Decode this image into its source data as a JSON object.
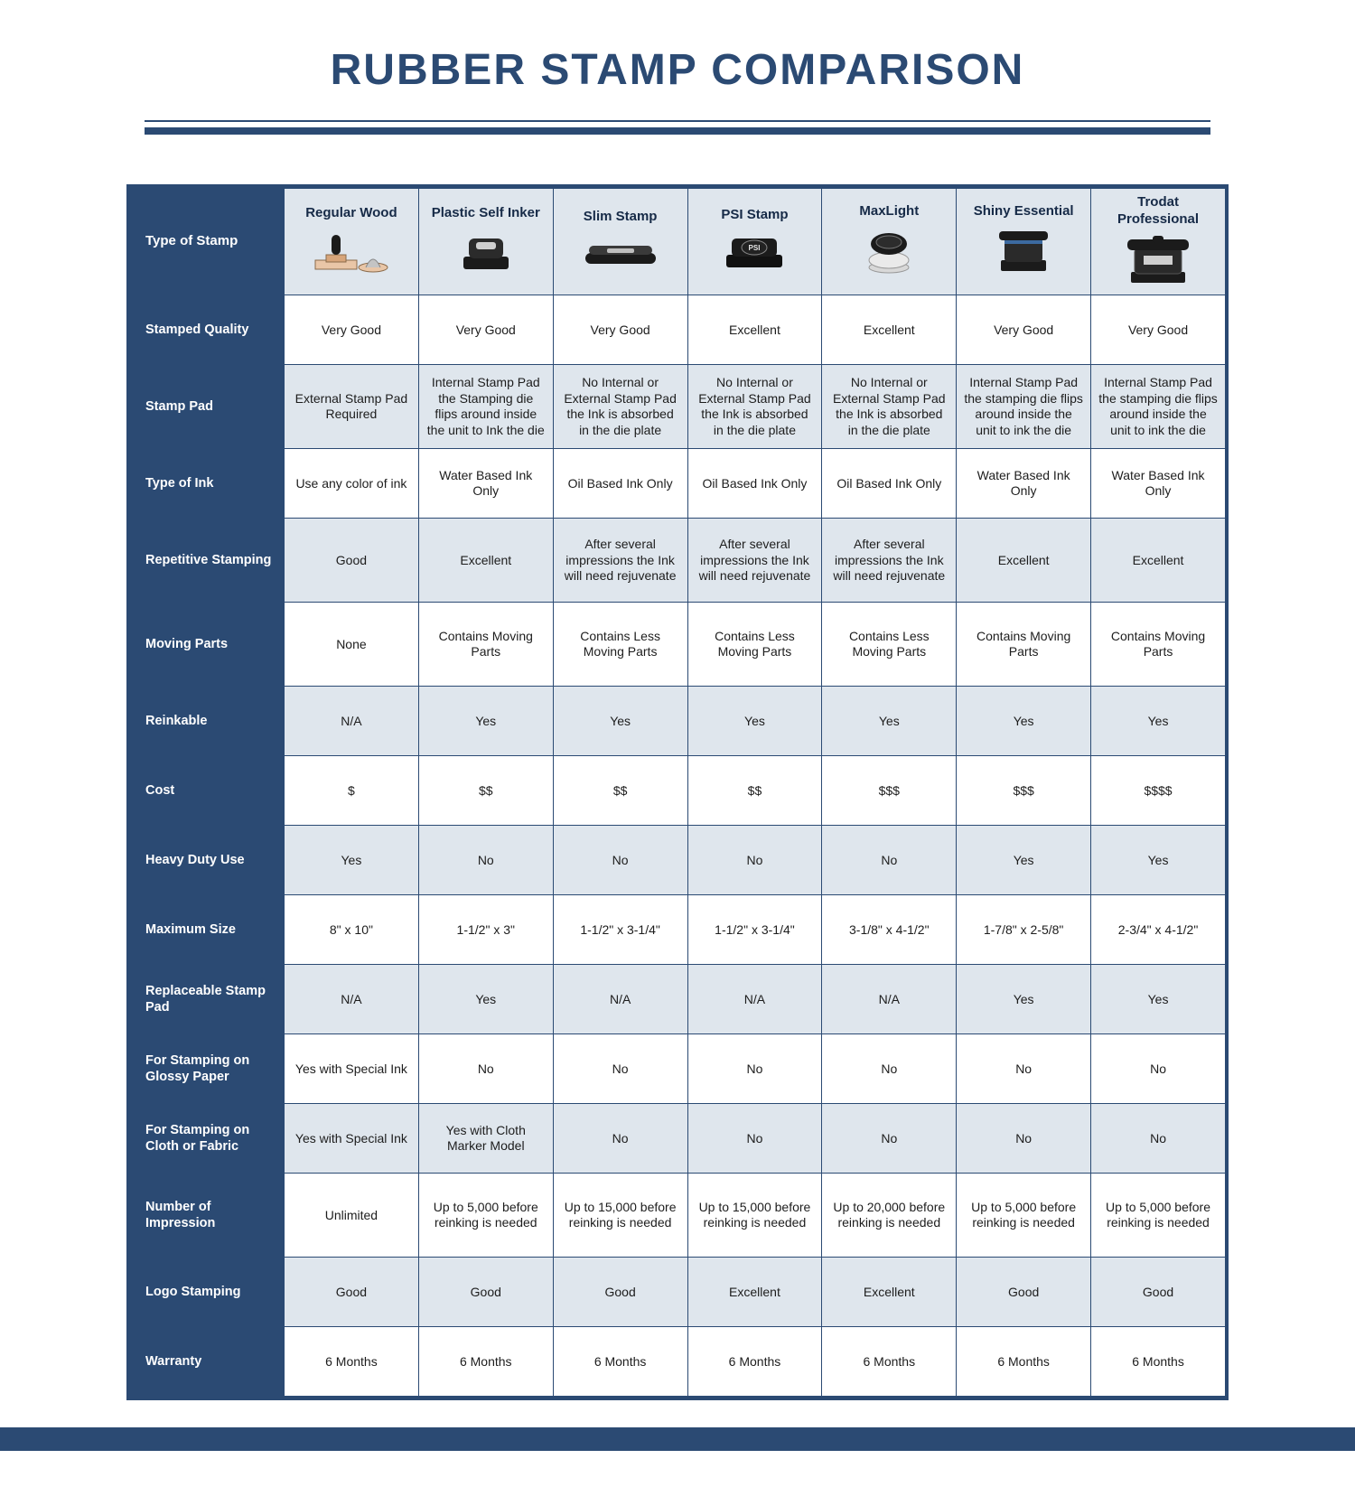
{
  "title": "RUBBER STAMP COMPARISON",
  "colors": {
    "brand": "#2b4a73",
    "header_bg": "#dfe6ed",
    "row_alt_bg": "#dfe6ed",
    "text": "#1d1d1d",
    "white": "#ffffff"
  },
  "corner_label": "Type of Stamp",
  "columns": [
    "Regular Wood",
    "Plastic Self Inker",
    "Slim Stamp",
    "PSI Stamp",
    "MaxLight",
    "Shiny Essential",
    "Trodat Professional"
  ],
  "rows": [
    {
      "label": "Stamped Quality",
      "alt": false,
      "tall": false,
      "cells": [
        "Very Good",
        "Very Good",
        "Very Good",
        "Excellent",
        "Excellent",
        "Very Good",
        "Very Good"
      ]
    },
    {
      "label": "Stamp Pad",
      "alt": true,
      "tall": true,
      "cells": [
        "External Stamp Pad Required",
        "Internal Stamp Pad the Stamping die flips around inside the unit to Ink the die",
        "No Internal or External Stamp Pad the Ink is absorbed in the die plate",
        "No Internal or External Stamp Pad the Ink is absorbed in the die plate",
        "No Internal or External Stamp Pad the Ink is absorbed in the die plate",
        "Internal Stamp Pad the stamping die flips around inside the unit to ink the die",
        "Internal Stamp Pad the stamping die flips around inside the unit to ink the die"
      ]
    },
    {
      "label": "Type of Ink",
      "alt": false,
      "tall": false,
      "cells": [
        "Use any color of ink",
        "Water Based Ink Only",
        "Oil Based Ink Only",
        "Oil Based Ink Only",
        "Oil Based Ink Only",
        "Water Based Ink Only",
        "Water Based Ink Only"
      ]
    },
    {
      "label": "Repetitive Stamping",
      "alt": true,
      "tall": true,
      "cells": [
        "Good",
        "Excellent",
        "After several impressions the Ink will need rejuvenate",
        "After several impressions the Ink will need rejuvenate",
        "After several impressions the Ink will need rejuvenate",
        "Excellent",
        "Excellent"
      ]
    },
    {
      "label": "Moving Parts",
      "alt": false,
      "tall": true,
      "cells": [
        "None",
        "Contains Moving Parts",
        "Contains Less Moving Parts",
        "Contains Less Moving Parts",
        "Contains Less Moving Parts",
        "Contains Moving Parts",
        "Contains Moving Parts"
      ]
    },
    {
      "label": "Reinkable",
      "alt": true,
      "tall": false,
      "cells": [
        "N/A",
        "Yes",
        "Yes",
        "Yes",
        "Yes",
        "Yes",
        "Yes"
      ]
    },
    {
      "label": "Cost",
      "alt": false,
      "tall": false,
      "cells": [
        "$",
        "$$",
        "$$",
        "$$",
        "$$$",
        "$$$",
        "$$$$"
      ]
    },
    {
      "label": "Heavy Duty Use",
      "alt": true,
      "tall": false,
      "cells": [
        "Yes",
        "No",
        "No",
        "No",
        "No",
        "Yes",
        "Yes"
      ]
    },
    {
      "label": "Maximum Size",
      "alt": false,
      "tall": false,
      "cells": [
        "8\" x 10\"",
        "1-1/2\" x 3\"",
        "1-1/2\" x 3-1/4\"",
        "1-1/2\" x 3-1/4\"",
        "3-1/8\" x 4-1/2\"",
        "1-7/8\" x 2-5/8\"",
        "2-3/4\" x 4-1/2\""
      ]
    },
    {
      "label": "Replaceable Stamp Pad",
      "alt": true,
      "tall": false,
      "cells": [
        "N/A",
        "Yes",
        "N/A",
        "N/A",
        "N/A",
        "Yes",
        "Yes"
      ]
    },
    {
      "label": "For Stamping on Glossy Paper",
      "alt": false,
      "tall": false,
      "cells": [
        "Yes with Special Ink",
        "No",
        "No",
        "No",
        "No",
        "No",
        "No"
      ]
    },
    {
      "label": "For Stamping on Cloth or Fabric",
      "alt": true,
      "tall": false,
      "cells": [
        "Yes with Special Ink",
        "Yes with Cloth Marker Model",
        "No",
        "No",
        "No",
        "No",
        "No"
      ]
    },
    {
      "label": "Number of Impression",
      "alt": false,
      "tall": true,
      "cells": [
        "Unlimited",
        "Up to 5,000 before reinking is needed",
        "Up to 15,000 before reinking is needed",
        "Up to 15,000 before reinking is needed",
        "Up to 20,000 before reinking is needed",
        "Up to 5,000 before reinking is needed",
        "Up to 5,000 before reinking is needed"
      ]
    },
    {
      "label": "Logo Stamping",
      "alt": true,
      "tall": false,
      "cells": [
        "Good",
        "Good",
        "Good",
        "Excellent",
        "Excellent",
        "Good",
        "Good"
      ]
    },
    {
      "label": "Warranty",
      "alt": false,
      "tall": false,
      "cells": [
        "6 Months",
        "6 Months",
        "6 Months",
        "6 Months",
        "6 Months",
        "6 Months",
        "6 Months"
      ]
    }
  ]
}
